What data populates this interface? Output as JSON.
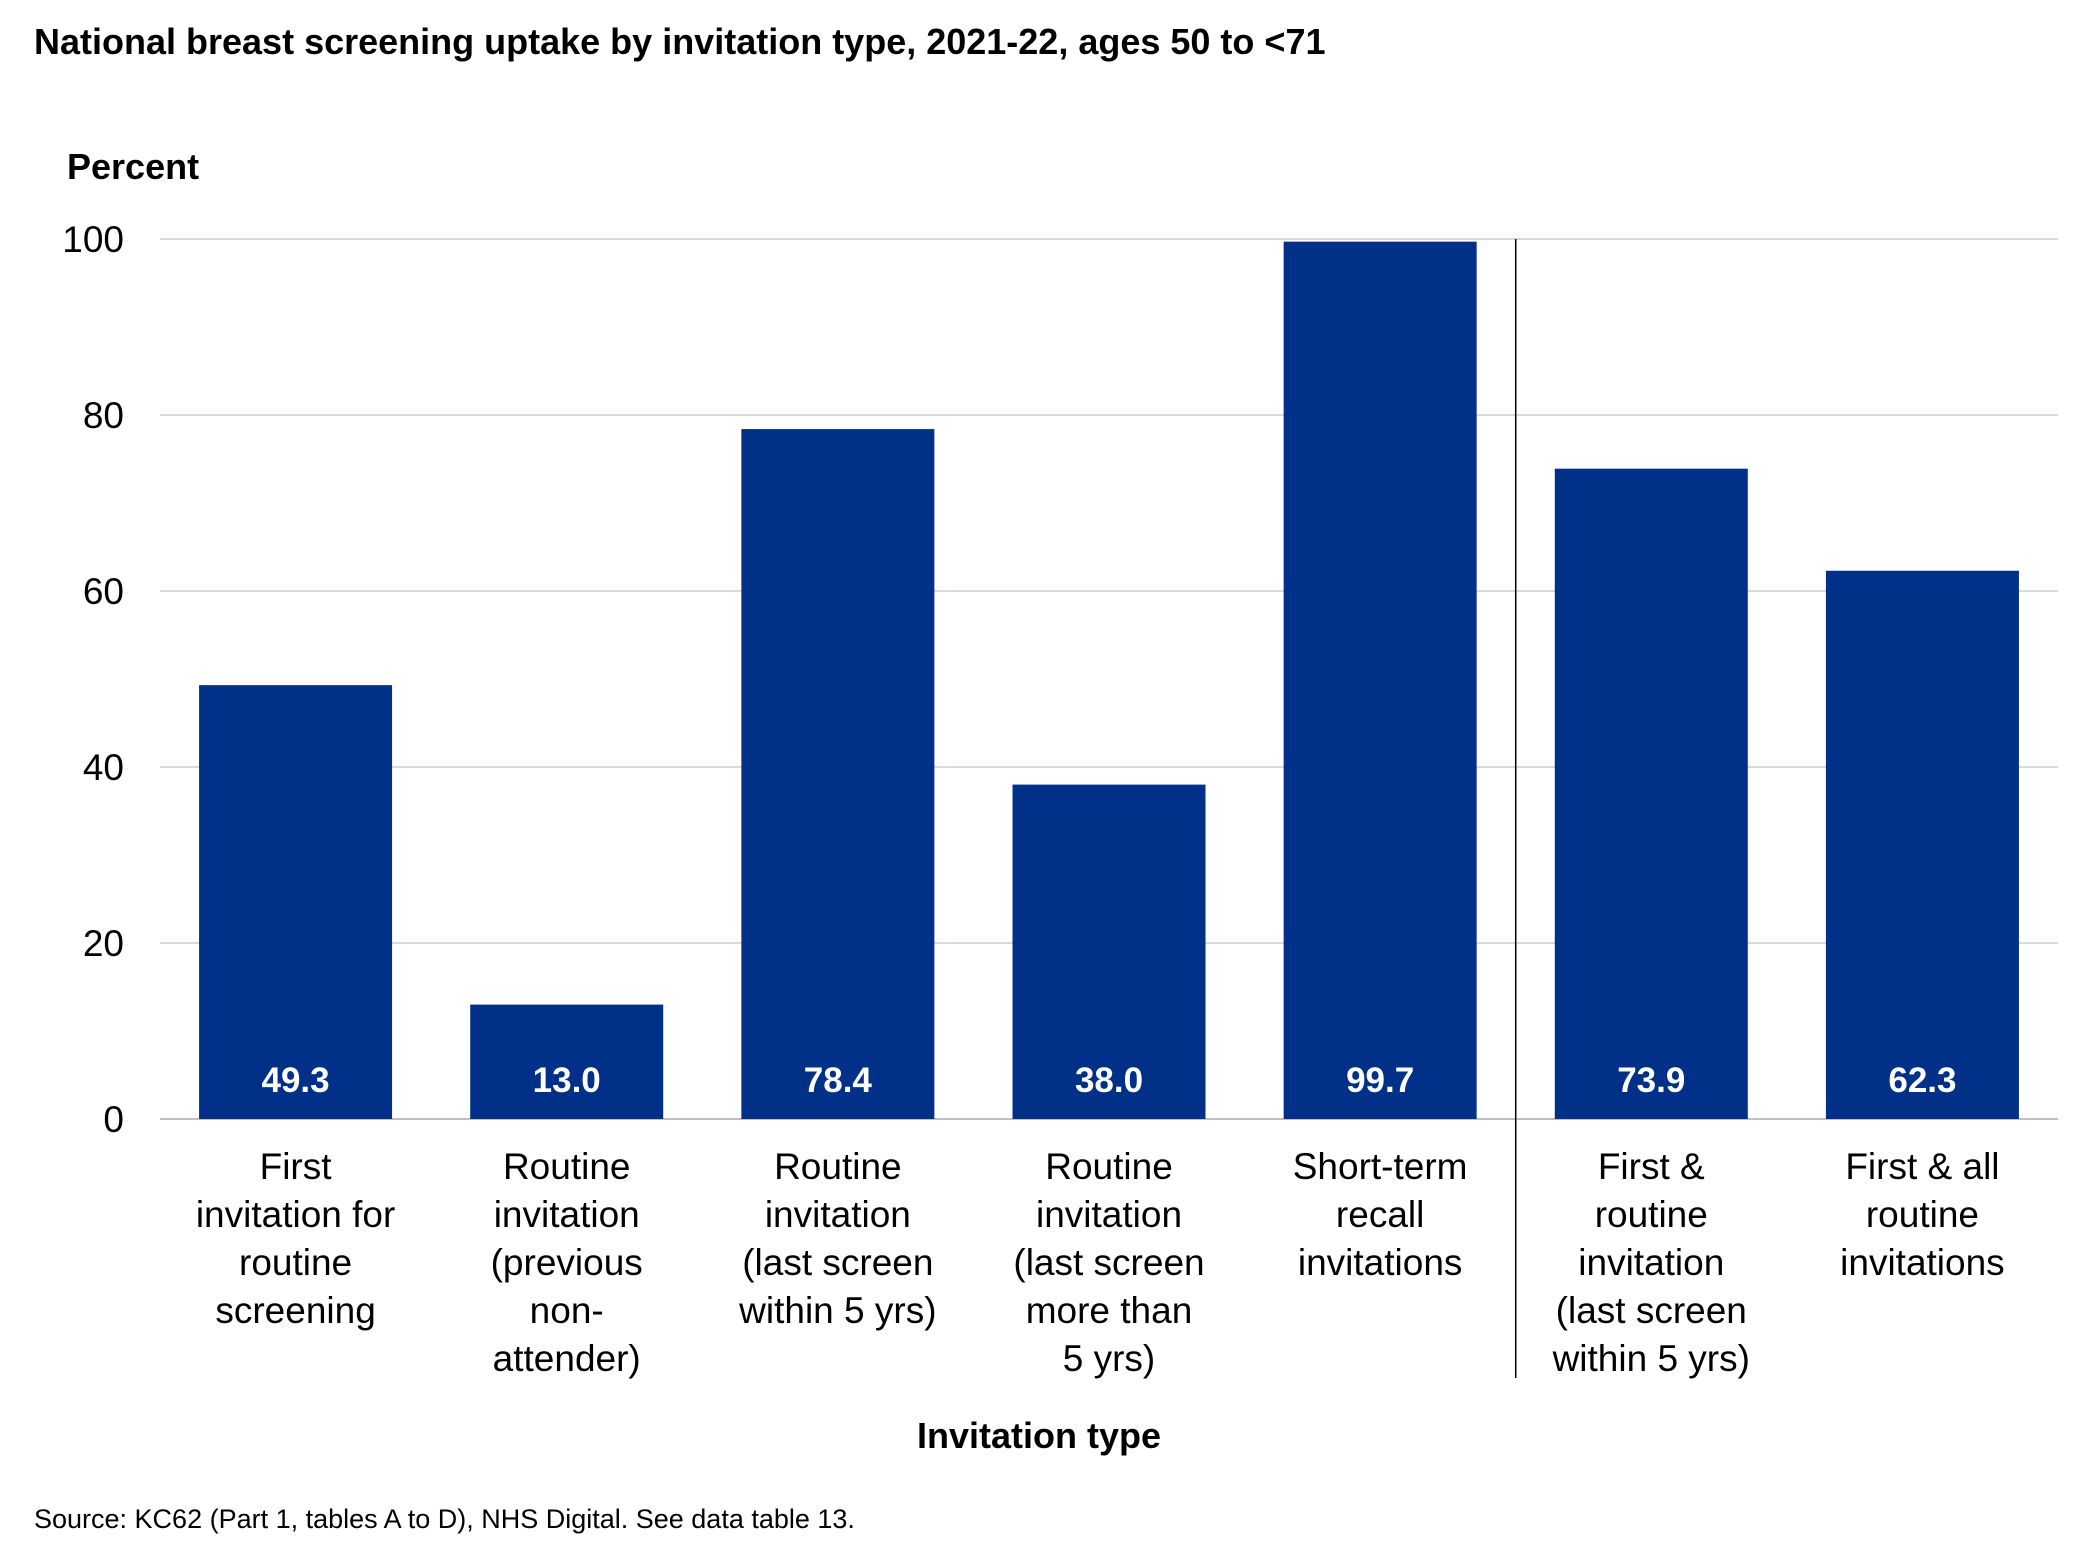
{
  "chart_data": {
    "type": "bar",
    "title": "National breast screening uptake by invitation type, 2021-22, ages 50 to <71",
    "ylabel": "Percent",
    "xlabel": "Invitation type",
    "ylim": [
      0,
      100
    ],
    "yticks": [
      0,
      20,
      40,
      60,
      80,
      100
    ],
    "grid": true,
    "categories": [
      [
        "First",
        "invitation for",
        "routine",
        "screening"
      ],
      [
        "Routine",
        "invitation",
        "(previous",
        "non-",
        "attender)"
      ],
      [
        "Routine",
        "invitation",
        "(last screen",
        "within 5 yrs)"
      ],
      [
        "Routine",
        "invitation",
        "(last screen",
        "more than",
        "5 yrs)"
      ],
      [
        "Short-term",
        "recall",
        "invitations"
      ],
      [
        "First &",
        "routine",
        "invitation",
        "(last screen",
        "within 5 yrs)"
      ],
      [
        "First & all",
        "routine",
        "invitations"
      ]
    ],
    "values": [
      49.3,
      13.0,
      78.4,
      38.0,
      99.7,
      73.9,
      62.3
    ],
    "value_labels": [
      "49.3",
      "13.0",
      "78.4",
      "38.0",
      "99.7",
      "73.9",
      "62.3"
    ],
    "separator_after_category": 4,
    "bar_color": "#003087",
    "source": "Source: KC62 (Part 1, tables A to D), NHS Digital. See data table 13."
  }
}
